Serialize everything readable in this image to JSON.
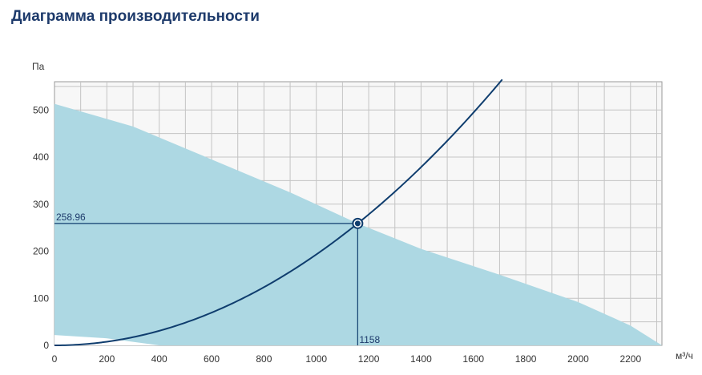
{
  "chart_data": {
    "type": "line",
    "title": "Диаграмма производительности",
    "ylabel": "Па",
    "xlabel": "м³/ч",
    "xlim": [
      0,
      2320
    ],
    "ylim": [
      0,
      560
    ],
    "grid": true,
    "x_ticks": [
      0,
      200,
      400,
      600,
      800,
      1000,
      1200,
      1400,
      1600,
      1800,
      2000,
      2200
    ],
    "y_ticks": [
      0,
      100,
      200,
      300,
      400,
      500
    ],
    "performance_area": {
      "upper": [
        [
          0,
          513
        ],
        [
          300,
          465
        ],
        [
          600,
          395
        ],
        [
          900,
          325
        ],
        [
          1158,
          259
        ],
        [
          1400,
          205
        ],
        [
          1700,
          150
        ],
        [
          2000,
          92
        ],
        [
          2200,
          42
        ],
        [
          2320,
          0
        ]
      ],
      "lower": [
        [
          0,
          22
        ],
        [
          200,
          15
        ],
        [
          400,
          0
        ]
      ]
    },
    "system_curve": {
      "coefficient": 0.0001931,
      "exponent": 2,
      "x_range": [
        0,
        1710
      ]
    },
    "operating_point": {
      "x": 1158,
      "y": 258.96,
      "x_label": "1158",
      "y_label": "258.96"
    },
    "colors": {
      "area": "#add8e3",
      "curve": "#0f3d6e",
      "grid": "#c4c4c4",
      "plot_bg": "#f7f7f7",
      "title": "#1d3a6b"
    }
  }
}
